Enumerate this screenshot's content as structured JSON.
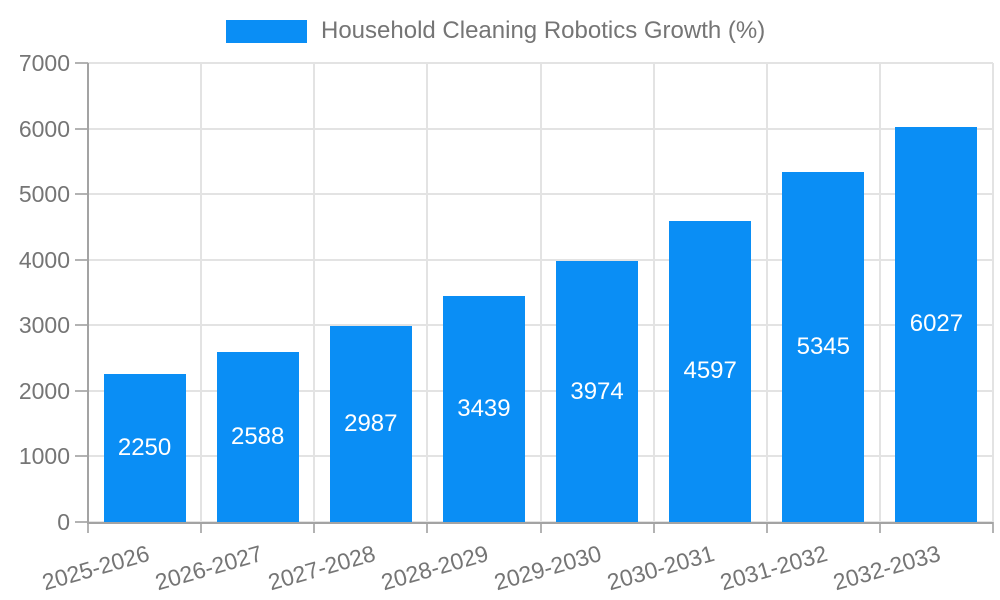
{
  "window": {
    "background": "#ffffff"
  },
  "chart_data": {
    "type": "bar",
    "title": "Household Cleaning Robotics Growth (%)",
    "legend": {
      "label": "Household Cleaning Robotics Growth (%)",
      "position": "top-center"
    },
    "categories": [
      "2025-2026",
      "2026-2027",
      "2027-2028",
      "2028-2029",
      "2029-2030",
      "2030-2031",
      "2031-2032",
      "2032-2033"
    ],
    "values": [
      2250,
      2588,
      2987,
      3439,
      3974,
      4597,
      5345,
      6027
    ],
    "xlabel": "",
    "ylabel": "",
    "ylim": [
      0,
      7000
    ],
    "yticks": [
      0,
      1000,
      2000,
      3000,
      4000,
      5000,
      6000,
      7000
    ],
    "grid": true,
    "bar_value_labels": "inside-center",
    "x_tick_rotation_deg": -16,
    "colors": {
      "bar": "#0a8ef5",
      "bar_label_text": "#ffffff",
      "tick_text": "#757575",
      "legend_text": "#757575",
      "gridline": "#e3e3e3",
      "axis_line": "#a3a3a3",
      "tick_mark": "#b3b3b3",
      "background": "#ffffff"
    }
  }
}
